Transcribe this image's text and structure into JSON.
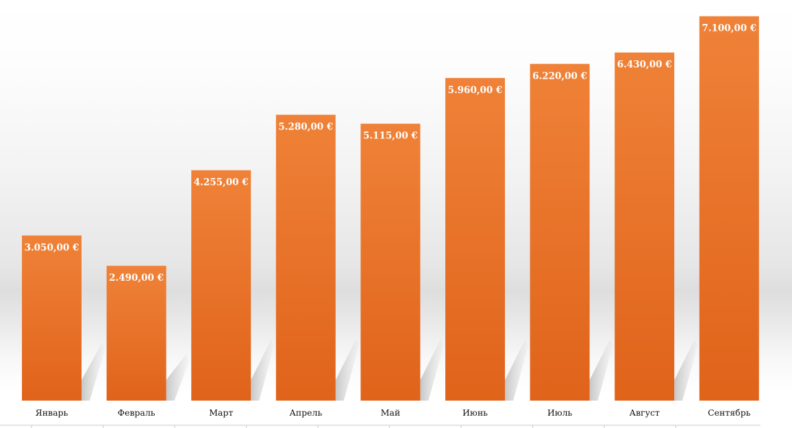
{
  "chart_data": {
    "type": "bar",
    "categories": [
      "Январь",
      "Февраль",
      "Март",
      "Апрель",
      "Май",
      "Июнь",
      "Июль",
      "Август",
      "Сентябрь"
    ],
    "values": [
      3050,
      2490,
      4255,
      5280,
      5115,
      5960,
      6220,
      6430,
      7100
    ],
    "data_labels": [
      "3.050,00 €",
      "2.490,00 €",
      "4.255,00 €",
      "5.280,00 €",
      "5.115,00 €",
      "5.960,00 €",
      "6.220,00 €",
      "6.430,00 €",
      "7.100,00 €"
    ],
    "title": "",
    "xlabel": "",
    "ylabel": "",
    "ylim": [
      0,
      7400
    ],
    "grid": false,
    "legend": "none",
    "colors": {
      "bar_top": "#ef8238",
      "bar_bottom": "#e0631a",
      "label_text": "#ffffff",
      "axis": "#c8c8c8"
    }
  }
}
